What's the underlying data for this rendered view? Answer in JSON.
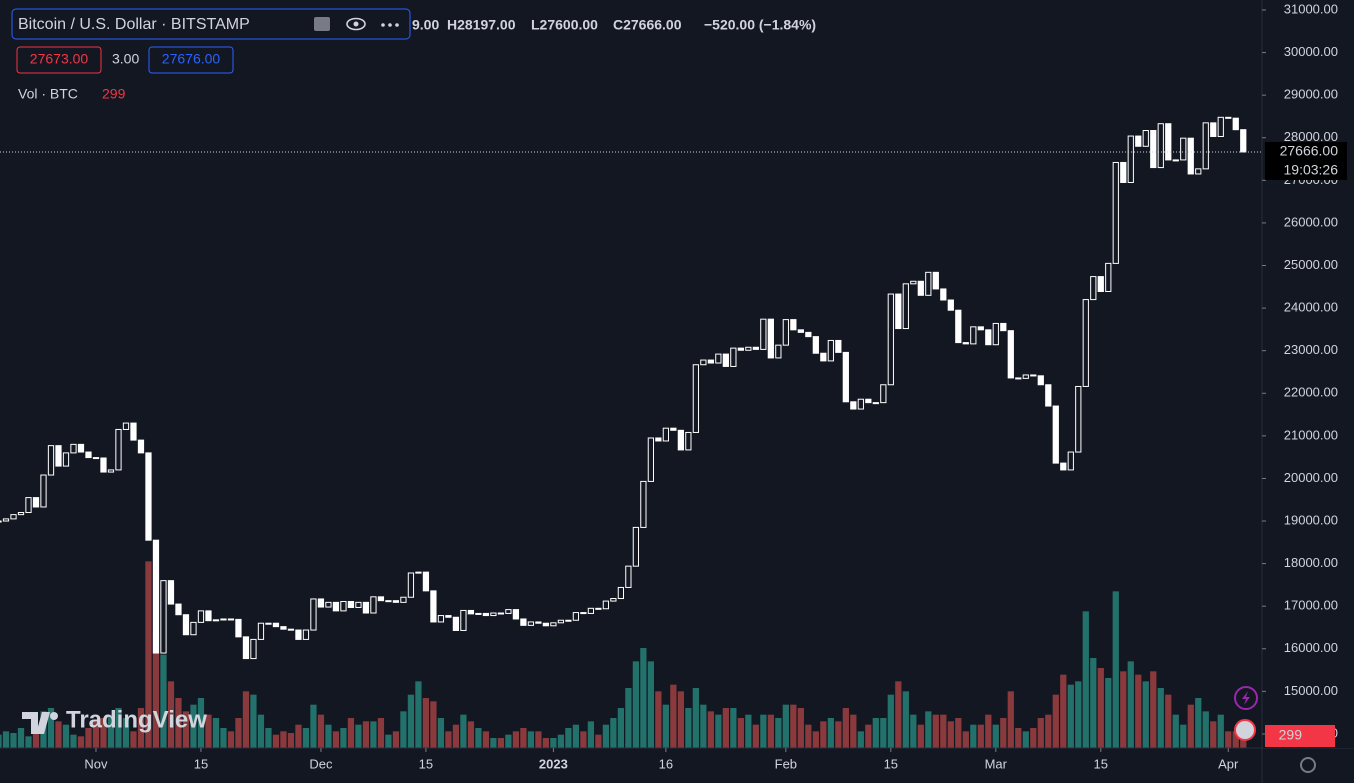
{
  "chart_data": {
    "type": "candlestick",
    "title": "Bitcoin / U.S. Dollar · BITSTAMP",
    "ohlc_legend": [
      "9.00",
      "H28197.00",
      "L27600.00",
      "C27666.00",
      "−520.00 (−1.84%)"
    ],
    "bid": "27673.00",
    "spread": "3.00",
    "ask": "27676.00",
    "volume_title": "Vol · BTC",
    "last_price": {
      "value": 27666,
      "label": "27666.00"
    },
    "countdown": "19:03:26",
    "watermark": "TradingView",
    "up_color": "#ffffff",
    "down_color": "#ffffff",
    "volume_up_color": "#22716b",
    "volume_down_color": "#8a3a3c",
    "xlim": [
      0.2,
      168.5
    ],
    "xticks": [
      {
        "value": 13,
        "label": "Nov"
      },
      {
        "value": 27,
        "label": "15"
      },
      {
        "value": 43,
        "label": "Dec"
      },
      {
        "value": 57,
        "label": "15"
      },
      {
        "value": 74,
        "label": "2023"
      },
      {
        "value": 89,
        "label": "16"
      },
      {
        "value": 105,
        "label": "Feb"
      },
      {
        "value": 119,
        "label": "15"
      },
      {
        "value": 133,
        "label": "Mar"
      },
      {
        "value": 147,
        "label": "15"
      },
      {
        "value": 164,
        "label": "Apr"
      }
    ],
    "ylim": [
      13670,
      31235
    ],
    "yticks": [
      {
        "value": 31000,
        "label": "31000.00"
      },
      {
        "value": 30000,
        "label": "30000.00"
      },
      {
        "value": 29000,
        "label": "29000.00"
      },
      {
        "value": 28000,
        "label": "28000.00"
      },
      {
        "value": 27000,
        "label": "27000.00"
      },
      {
        "value": 26000,
        "label": "26000.00"
      },
      {
        "value": 25000,
        "label": "25000.00"
      },
      {
        "value": 24000,
        "label": "24000.00"
      },
      {
        "value": 23000,
        "label": "23000.00"
      },
      {
        "value": 22000,
        "label": "22000.00"
      },
      {
        "value": 21000,
        "label": "21000.00"
      },
      {
        "value": 20000,
        "label": "20000.00"
      },
      {
        "value": 19000,
        "label": "19000.00"
      },
      {
        "value": 18000,
        "label": "18000.00"
      },
      {
        "value": 17000,
        "label": "17000.00"
      },
      {
        "value": 16000,
        "label": "16000.00"
      },
      {
        "value": 15000,
        "label": "15000.00"
      },
      {
        "value": 14000,
        "label": "14000.00"
      }
    ],
    "volume_lim": [
      0,
      6000
    ],
    "close": [
      19000,
      19050,
      19150,
      19200,
      19550,
      19330,
      20080,
      20770,
      20290,
      20600,
      20800,
      20620,
      20490,
      20480,
      20150,
      20200,
      21150,
      21300,
      20900,
      20600,
      18550,
      15900,
      17600,
      17050,
      16800,
      16330,
      16620,
      16890,
      16660,
      16680,
      16700,
      16690,
      16280,
      15770,
      16220,
      16600,
      16600,
      16520,
      16460,
      16440,
      16220,
      16440,
      17170,
      16980,
      17090,
      16890,
      17110,
      16970,
      17090,
      16840,
      17220,
      17130,
      17130,
      17090,
      17210,
      17780,
      17800,
      17360,
      16630,
      16780,
      16740,
      16430,
      16900,
      16820,
      16830,
      16780,
      16840,
      16830,
      16920,
      16700,
      16550,
      16630,
      16600,
      16540,
      16610,
      16670,
      16670,
      16850,
      16830,
      16950,
      16940,
      17120,
      17180,
      17440,
      17940,
      18850,
      19930,
      20950,
      20880,
      21180,
      21130,
      20670,
      21080,
      22670,
      22780,
      22710,
      22920,
      22630,
      23060,
      23010,
      23080,
      23030,
      23740,
      22830,
      23130,
      23730,
      23490,
      23430,
      23330,
      22940,
      22760,
      23240,
      22960,
      21800,
      21630,
      21860,
      21780,
      21780,
      22200,
      24330,
      23520,
      24570,
      24630,
      24300,
      24840,
      24450,
      24190,
      23950,
      23190,
      23160,
      23560,
      23490,
      23140,
      23640,
      23470,
      22360,
      22350,
      22430,
      22410,
      22200,
      21700,
      20360,
      20200,
      20620,
      22160,
      24200,
      24740,
      24390,
      25050,
      27420,
      26950,
      28040,
      27800,
      28170,
      27300,
      28330,
      27480,
      27480,
      27990,
      27150,
      27270,
      28350,
      28030,
      28480,
      28460,
      28190,
      27666
    ],
    "volume": [
      400,
      500,
      450,
      600,
      350,
      500,
      1100,
      1200,
      800,
      700,
      400,
      350,
      600,
      800,
      900,
      1000,
      1200,
      900,
      500,
      1200,
      5600,
      3500,
      2800,
      2000,
      1500,
      1100,
      1300,
      1500,
      1000,
      900,
      600,
      500,
      900,
      1700,
      1600,
      1000,
      600,
      400,
      500,
      450,
      700,
      600,
      1300,
      1000,
      700,
      500,
      600,
      900,
      700,
      800,
      800,
      900,
      400,
      500,
      1100,
      1600,
      2000,
      1500,
      1400,
      900,
      500,
      700,
      1000,
      800,
      600,
      500,
      300,
      300,
      400,
      500,
      600,
      500,
      500,
      300,
      300,
      400,
      600,
      700,
      500,
      800,
      400,
      700,
      900,
      1200,
      1800,
      2600,
      3000,
      2600,
      1700,
      1300,
      1900,
      1700,
      1200,
      1800,
      1300,
      1100,
      1000,
      1200,
      1200,
      900,
      1000,
      700,
      1000,
      1000,
      900,
      1300,
      1300,
      1200,
      700,
      500,
      800,
      900,
      800,
      1200,
      1000,
      500,
      700,
      900,
      900,
      1600,
      2000,
      1700,
      1000,
      700,
      1100,
      1000,
      1000,
      800,
      900,
      500,
      700,
      700,
      1000,
      700,
      900,
      1700,
      600,
      500,
      600,
      900,
      1000,
      1600,
      2200,
      1900,
      2000,
      4100,
      2700,
      2400,
      2100,
      4700,
      2300,
      2600,
      2200,
      2000,
      2300,
      1800,
      1600,
      1000,
      700,
      1300,
      1500,
      1100,
      800,
      1000,
      500,
      500,
      299
    ]
  }
}
